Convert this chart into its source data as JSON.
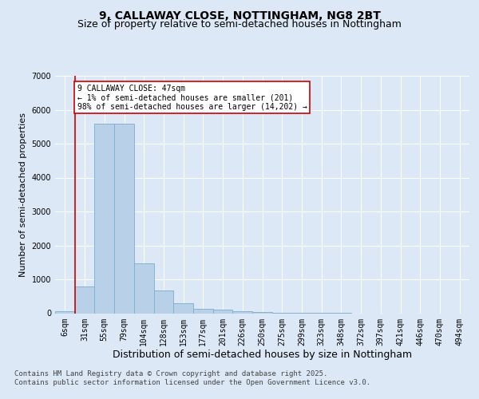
{
  "title_line1": "9, CALLAWAY CLOSE, NOTTINGHAM, NG8 2BT",
  "title_line2": "Size of property relative to semi-detached houses in Nottingham",
  "xlabel": "Distribution of semi-detached houses by size in Nottingham",
  "ylabel": "Number of semi-detached properties",
  "categories": [
    "6sqm",
    "31sqm",
    "55sqm",
    "79sqm",
    "104sqm",
    "128sqm",
    "153sqm",
    "177sqm",
    "201sqm",
    "226sqm",
    "250sqm",
    "275sqm",
    "299sqm",
    "323sqm",
    "348sqm",
    "372sqm",
    "397sqm",
    "421sqm",
    "446sqm",
    "470sqm",
    "494sqm"
  ],
  "values": [
    50,
    800,
    5580,
    5580,
    1480,
    660,
    285,
    140,
    95,
    55,
    30,
    10,
    5,
    2,
    1,
    0,
    0,
    0,
    0,
    0,
    0
  ],
  "bar_color": "#b8d0e8",
  "bar_edgecolor": "#7aaed0",
  "vline_color": "#cc0000",
  "vline_pos": 0.5,
  "annotation_text": "9 CALLAWAY CLOSE: 47sqm\n← 1% of semi-detached houses are smaller (201)\n98% of semi-detached houses are larger (14,202) →",
  "annotation_box_edgecolor": "#cc0000",
  "annotation_box_facecolor": "#ffffff",
  "ylim": [
    0,
    7000
  ],
  "yticks": [
    0,
    1000,
    2000,
    3000,
    4000,
    5000,
    6000,
    7000
  ],
  "footer_line1": "Contains HM Land Registry data © Crown copyright and database right 2025.",
  "footer_line2": "Contains public sector information licensed under the Open Government Licence v3.0.",
  "bg_color": "#dce8f5",
  "plot_bg_color": "#dce8f5",
  "grid_color": "#ffffff",
  "title_fontsize": 10,
  "subtitle_fontsize": 9,
  "xlabel_fontsize": 9,
  "ylabel_fontsize": 8,
  "tick_fontsize": 7,
  "annot_fontsize": 7,
  "footer_fontsize": 6.5
}
